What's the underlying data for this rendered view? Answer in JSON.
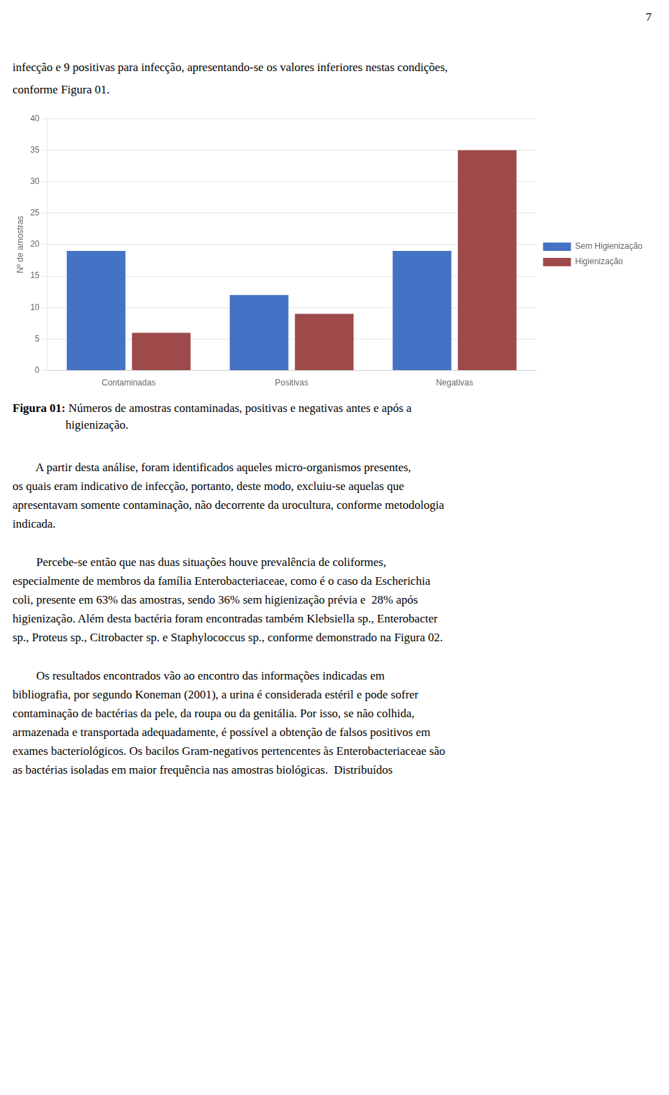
{
  "page": {
    "page_number": "7",
    "intro_lines": [
      "infecção e 9 positivas para infecção, apresentando-se os valores inferiores nestas condições,",
      "conforme Figura 01."
    ],
    "caption_bold": "Figura 01:",
    "caption_normal": " Números de amostras contaminadas, positivas e negativas antes e após a",
    "caption_line2": "higienização.",
    "paragraphs": [
      [
        "        A partir desta análise, foram identificados aqueles micro-organismos presentes,",
        "os quais eram indicativo de infecção, portanto, deste modo, excluiu-se aquelas que",
        "apresentavam somente contaminação, não decorrente da urocultura, conforme metodologia",
        "indicada."
      ],
      [
        "        Percebe-se então que nas duas situações houve prevalência de coliformes,",
        "especialmente de membros da família Enterobacteriaceae, como é o caso da Escherichia",
        "coli, presente em 63% das amostras, sendo 36% sem higienização prévia e  28% após",
        "higienização. Além desta bactéria foram encontradas também Klebsiella sp., Enterobacter",
        "sp., Proteus sp., Citrobacter sp. e Staphylococcus sp., conforme demonstrado na Figura 02."
      ],
      [
        "        Os resultados encontrados vão ao encontro das informações indicadas em",
        "bibliografia, por segundo Koneman (2001), a urina é considerada estéril e pode sofrer",
        "contaminação de bactérias da pele, da roupa ou da genitália. Por isso, se não colhida,",
        "armazenada e transportada adequadamente, é possível a obtenção de falsos positivos em",
        "exames bacteriológicos. Os bacilos Gram-negativos pertencentes às Enterobacteriaceae são",
        "as bactérias isoladas em maior frequência nas amostras biológicas.  Distribuídos"
      ]
    ]
  },
  "chart_data": {
    "type": "bar",
    "categories": [
      "Contaminadas",
      "Positivas",
      "Negativas"
    ],
    "series": [
      {
        "name": "Sem Higienização",
        "color": "#4472C4",
        "values": [
          19,
          12,
          19
        ]
      },
      {
        "name": "Higienização",
        "color": "#9E4A4A",
        "values": [
          6,
          9,
          35
        ]
      }
    ],
    "ylabel": "Nº de amostras",
    "ylim": [
      0,
      40
    ],
    "yticks": [
      0,
      5,
      10,
      15,
      20,
      25,
      30,
      35,
      40
    ],
    "grid": true,
    "legend": "right"
  }
}
